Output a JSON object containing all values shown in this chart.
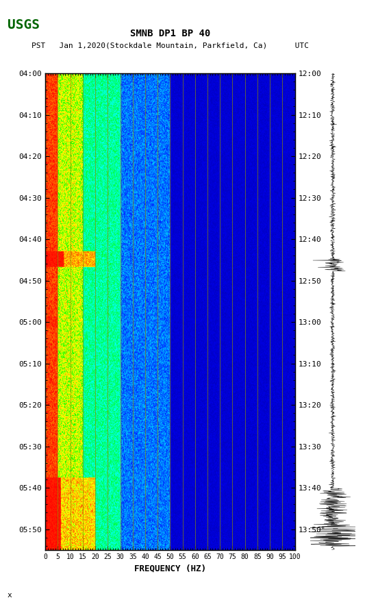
{
  "title_line1": "SMNB DP1 BP 40",
  "title_line2": "PST   Jan 1,2020(Stockdale Mountain, Parkfield, Ca)      UTC",
  "xlabel": "FREQUENCY (HZ)",
  "freq_min": 0,
  "freq_max": 100,
  "freq_ticks": [
    0,
    5,
    10,
    15,
    20,
    25,
    30,
    35,
    40,
    45,
    50,
    55,
    60,
    65,
    70,
    75,
    80,
    85,
    90,
    95,
    100
  ],
  "time_start_pst": "04:00",
  "time_end_pst": "05:55",
  "time_start_utc": "12:00",
  "time_end_utc": "13:55",
  "left_time_labels": [
    "04:00",
    "04:10",
    "04:20",
    "04:30",
    "04:40",
    "04:50",
    "05:00",
    "05:10",
    "05:20",
    "05:30",
    "05:40",
    "05:50"
  ],
  "right_time_labels": [
    "12:00",
    "12:10",
    "12:20",
    "12:30",
    "12:40",
    "12:50",
    "13:00",
    "13:10",
    "13:20",
    "13:30",
    "13:40",
    "13:50"
  ],
  "background_color": "#ffffff",
  "spectrogram_bg": "#00008B",
  "vertical_line_color": "#8B8B00",
  "vertical_line_freq": [
    5,
    10,
    15,
    20,
    25,
    30,
    35,
    40,
    45,
    50,
    55,
    60,
    65,
    70,
    75,
    80,
    85,
    90,
    95
  ],
  "fig_width": 5.52,
  "fig_height": 8.92
}
